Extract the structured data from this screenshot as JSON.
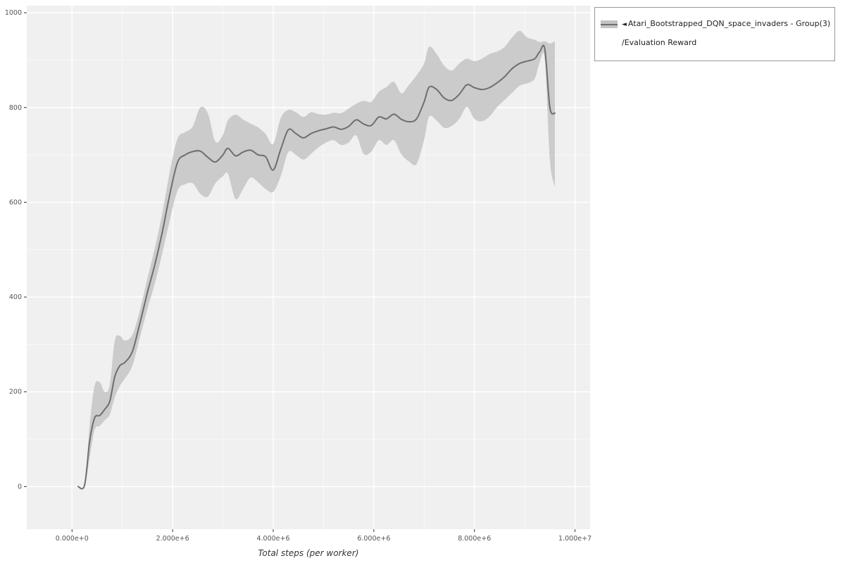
{
  "colors": {
    "panel_bg": "#f0f0f0",
    "grid_major": "#ffffff",
    "grid_minor": "#fafafa",
    "tick_text": "#555555",
    "tick_mark": "#333333",
    "line": "#6e6e6e",
    "band": "#c4c4c4",
    "legend_border": "#999999"
  },
  "legend": {
    "collapse_icon": "◄",
    "label_line1": "Atari_Bootstrapped_DQN_space_invaders - Group(3)",
    "label_line2": "/Evaluation Reward"
  },
  "chart_data": {
    "type": "line",
    "title": "",
    "xlabel": "Total steps (per worker)",
    "ylabel": "",
    "grid": true,
    "legend_position": "top-right-outside",
    "xlim": [
      -900000,
      10300000
    ],
    "ylim": [
      -90,
      1015
    ],
    "x_ticks": [
      {
        "value": 0,
        "label": "0.000e+0"
      },
      {
        "value": 2000000,
        "label": "2.000e+6"
      },
      {
        "value": 4000000,
        "label": "4.000e+6"
      },
      {
        "value": 6000000,
        "label": "6.000e+6"
      },
      {
        "value": 8000000,
        "label": "8.000e+6"
      },
      {
        "value": 10000000,
        "label": "1.000e+7"
      }
    ],
    "y_ticks": [
      {
        "value": 0,
        "label": "0"
      },
      {
        "value": 200,
        "label": "200"
      },
      {
        "value": 400,
        "label": "400"
      },
      {
        "value": 600,
        "label": "600"
      },
      {
        "value": 800,
        "label": "800"
      },
      {
        "value": 1000,
        "label": "1000"
      }
    ],
    "series": [
      {
        "name": "Atari_Bootstrapped_DQN_space_invaders - Group(3)/Evaluation Reward",
        "color": "#6e6e6e",
        "band_color": "#c4c4c4",
        "x": [
          120000,
          250000,
          350000,
          450000,
          550000,
          650000,
          750000,
          850000,
          950000,
          1050000,
          1200000,
          1350000,
          1500000,
          1650000,
          1800000,
          1950000,
          2100000,
          2250000,
          2400000,
          2550000,
          2700000,
          2850000,
          3000000,
          3100000,
          3250000,
          3400000,
          3550000,
          3700000,
          3850000,
          4000000,
          4150000,
          4300000,
          4450000,
          4600000,
          4750000,
          4900000,
          5050000,
          5200000,
          5350000,
          5500000,
          5650000,
          5800000,
          5950000,
          6100000,
          6250000,
          6400000,
          6550000,
          6700000,
          6850000,
          7000000,
          7100000,
          7250000,
          7400000,
          7550000,
          7700000,
          7850000,
          8000000,
          8150000,
          8300000,
          8450000,
          8600000,
          8750000,
          8900000,
          9050000,
          9200000,
          9300000,
          9400000,
          9500000,
          9600000
        ],
        "mean": [
          0,
          3,
          95,
          145,
          150,
          163,
          180,
          232,
          255,
          262,
          285,
          345,
          410,
          470,
          540,
          620,
          685,
          700,
          707,
          708,
          695,
          685,
          700,
          714,
          698,
          706,
          710,
          700,
          696,
          668,
          712,
          753,
          745,
          736,
          745,
          751,
          755,
          759,
          754,
          760,
          774,
          765,
          762,
          780,
          776,
          786,
          775,
          770,
          776,
          812,
          843,
          838,
          820,
          815,
          828,
          848,
          842,
          838,
          842,
          852,
          865,
          882,
          893,
          898,
          903,
          918,
          923,
          800,
          788
        ],
        "lower": [
          0,
          0,
          60,
          120,
          128,
          140,
          152,
          188,
          212,
          228,
          255,
          315,
          375,
          430,
          495,
          565,
          625,
          638,
          640,
          618,
          612,
          640,
          655,
          660,
          607,
          628,
          652,
          642,
          628,
          622,
          655,
          706,
          700,
          690,
          702,
          716,
          726,
          731,
          721,
          726,
          741,
          702,
          707,
          731,
          721,
          731,
          701,
          686,
          681,
          732,
          781,
          772,
          757,
          761,
          776,
          801,
          776,
          771,
          781,
          801,
          816,
          831,
          846,
          851,
          861,
          896,
          900,
          690,
          632
        ],
        "upper": [
          0,
          6,
          130,
          213,
          220,
          200,
          215,
          308,
          318,
          308,
          320,
          372,
          440,
          505,
          580,
          668,
          735,
          748,
          760,
          800,
          788,
          728,
          742,
          773,
          785,
          775,
          766,
          758,
          744,
          723,
          778,
          795,
          790,
          780,
          790,
          786,
          785,
          789,
          788,
          798,
          808,
          814,
          812,
          833,
          843,
          854,
          830,
          848,
          868,
          893,
          928,
          913,
          888,
          878,
          893,
          903,
          898,
          903,
          913,
          918,
          928,
          948,
          962,
          948,
          943,
          938,
          940,
          935,
          940
        ]
      }
    ]
  }
}
